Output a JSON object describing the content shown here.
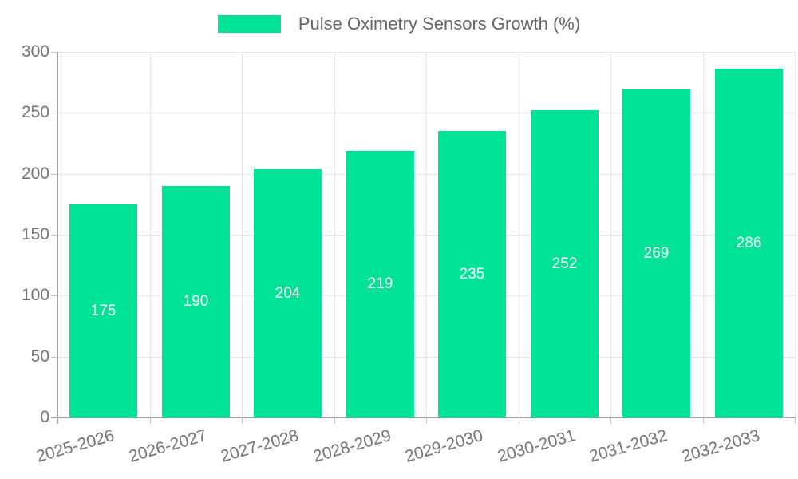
{
  "chart_data": {
    "type": "bar",
    "title": "Pulse Oximetry Sensors Growth (%)",
    "legend": {
      "label": "Pulse Oximetry Sensors Growth (%)",
      "position": "top"
    },
    "categories": [
      "2025-2026",
      "2026-2027",
      "2027-2028",
      "2028-2029",
      "2029-2030",
      "2030-2031",
      "2031-2032",
      "2032-2033"
    ],
    "values": [
      175,
      190,
      204,
      219,
      235,
      252,
      269,
      286
    ],
    "value_labels_visible": true,
    "xlabel": "",
    "ylabel": "",
    "ylim": [
      0,
      300
    ],
    "yticks": [
      0,
      50,
      100,
      150,
      200,
      250,
      300
    ],
    "grid": {
      "horizontal": true,
      "vertical": true
    },
    "x_label_rotation_deg": -16,
    "colors": {
      "bar": "#00E396",
      "value_label": "#ffffff",
      "axis_text": "#757575",
      "legend_text": "#666666",
      "grid_line": "#e5e5e5",
      "axis_line": "#a6a6a6",
      "tick_mark": "#c0c0c0",
      "background": "#ffffff"
    }
  }
}
